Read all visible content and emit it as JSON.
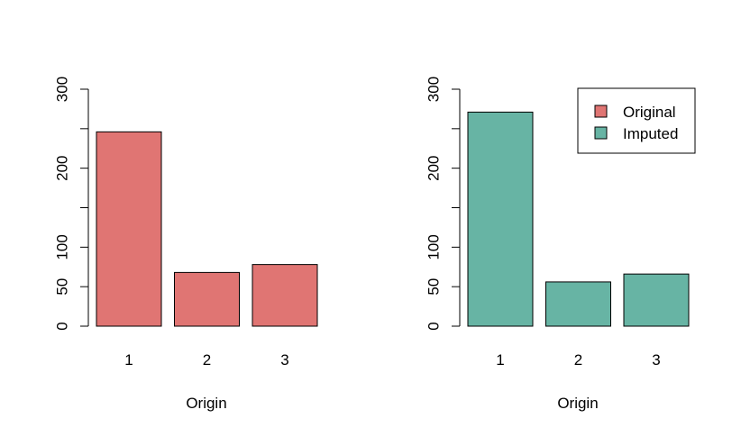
{
  "chart_data": [
    {
      "type": "bar",
      "categories": [
        "1",
        "2",
        "3"
      ],
      "values": [
        246,
        68,
        78
      ],
      "xlabel": "Origin",
      "ylabel": "",
      "ylim": [
        0,
        300
      ],
      "yticks": [
        0,
        50,
        100,
        150,
        200,
        250,
        300
      ],
      "ytick_labels": [
        "0",
        "50",
        "100",
        "",
        "200",
        "",
        "300"
      ],
      "bar_color": "#E07573",
      "grid": false
    },
    {
      "type": "bar",
      "categories": [
        "1",
        "2",
        "3"
      ],
      "values": [
        271,
        56,
        66
      ],
      "xlabel": "Origin",
      "ylabel": "",
      "ylim": [
        0,
        300
      ],
      "yticks": [
        0,
        50,
        100,
        150,
        200,
        250,
        300
      ],
      "ytick_labels": [
        "0",
        "50",
        "100",
        "",
        "200",
        "",
        "300"
      ],
      "bar_color": "#67B4A4",
      "grid": false,
      "legend": {
        "placement": "top-right",
        "entries": [
          {
            "label": "Original",
            "color": "#E07573"
          },
          {
            "label": "Imputed",
            "color": "#67B4A4"
          }
        ]
      }
    }
  ]
}
